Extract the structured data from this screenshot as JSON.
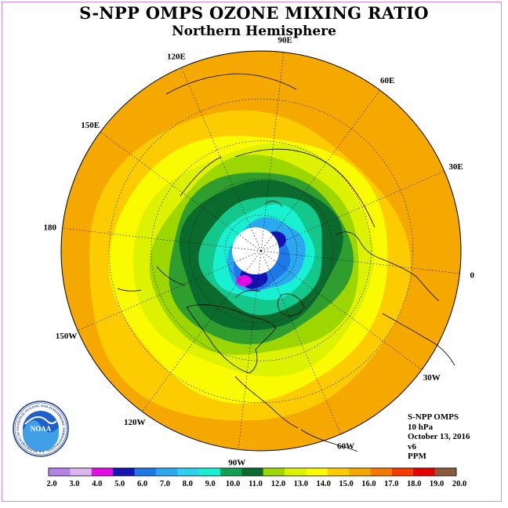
{
  "header": {
    "title": "S-NPP OMPS OZONE MIXING RATIO",
    "subtitle": "Northern Hemisphere"
  },
  "map": {
    "projection": "north-polar-stereographic",
    "longitude_labels": [
      "120E",
      "90E",
      "60E",
      "150E",
      "30E",
      "180",
      "0",
      "150W",
      "30W",
      "120W",
      "60W",
      "90W"
    ],
    "no_data_region": "north-pole",
    "contour_levels_ppm": [
      {
        "level": 16.5,
        "color": "#f5a800"
      },
      {
        "level": 15.5,
        "color": "#fdcc00"
      },
      {
        "level": 14.8,
        "color": "#fafa00"
      },
      {
        "level": 14.0,
        "color": "#ddf200"
      },
      {
        "level": 13.0,
        "color": "#9ed600"
      },
      {
        "level": 12.0,
        "color": "#2f9e2f"
      },
      {
        "level": 11.3,
        "color": "#0b6b2e"
      },
      {
        "level": 10.5,
        "color": "#14c88c"
      },
      {
        "level": 9.5,
        "color": "#18f0d2"
      },
      {
        "level": 8.5,
        "color": "#2aa8f0"
      },
      {
        "level": 7.5,
        "color": "#1e78e6"
      },
      {
        "level": 6.0,
        "color": "#1414b4"
      },
      {
        "level": 4.8,
        "color": "#e60ae6"
      }
    ]
  },
  "info_block": {
    "instrument": "S-NPP OMPS",
    "pressure": "10 hPa",
    "date": "October 13, 2016",
    "version": "v6",
    "units": "PPM"
  },
  "logo": {
    "center_text": "NOAA",
    "ring_text": "NATIONAL OCEANIC AND ATMOSPHERIC ADMINISTRATION · U.S. DEPARTMENT OF COMMERCE"
  },
  "colorbar": {
    "labels": [
      "2.0",
      "3.0",
      "4.0",
      "5.0",
      "6.0",
      "7.0",
      "8.0",
      "9.0",
      "10.0",
      "11.0",
      "12.0",
      "13.0",
      "14.0",
      "15.0",
      "16.0",
      "17.0",
      "18.0",
      "19.0",
      "20.0"
    ],
    "colors": [
      "#b482e6",
      "#dcb4f0",
      "#e60ae6",
      "#1414b4",
      "#1e78e6",
      "#2aa8f0",
      "#2ad2f0",
      "#18f0d2",
      "#0fa050",
      "#0b6b2e",
      "#9ed600",
      "#ddf200",
      "#fafa00",
      "#fdcc00",
      "#f5a800",
      "#f57800",
      "#f53c00",
      "#e60000",
      "#8c5a3c"
    ]
  }
}
